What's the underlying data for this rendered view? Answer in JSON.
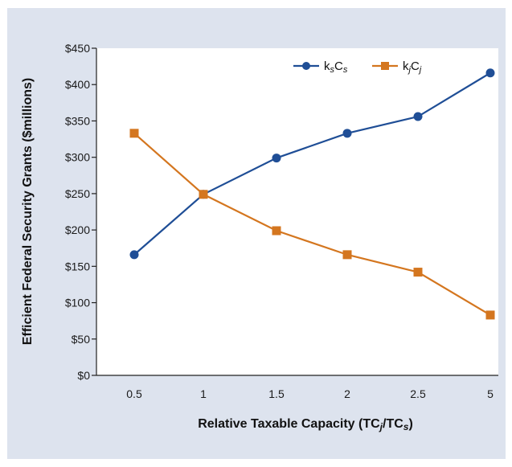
{
  "chart_data": {
    "type": "line",
    "categories": [
      "0.5",
      "1",
      "1.5",
      "2",
      "2.5",
      "5"
    ],
    "series": [
      {
        "name": "ksCs",
        "label_main": "k",
        "label_sub1": "s",
        "label_mid": "C",
        "label_sub2": "s",
        "sub_italic": true,
        "color": "#1f4e96",
        "marker": "circle",
        "values": [
          166,
          249,
          299,
          333,
          356,
          416
        ]
      },
      {
        "name": "kjCj",
        "label_main": "k",
        "label_sub1": "j",
        "label_mid": "C",
        "label_sub2": "j",
        "sub_italic": true,
        "color": "#d4761f",
        "marker": "square",
        "values": [
          333,
          249,
          199,
          166,
          142,
          83
        ]
      }
    ],
    "y_ticks": [
      "$0",
      "$50",
      "$100",
      "$150",
      "$200",
      "$250",
      "$300",
      "$350",
      "$400",
      "$450"
    ],
    "ylim": [
      0,
      450
    ],
    "ylabel": "Efficient Federal Security Grants ($millions)",
    "xlabel_parts": {
      "pre": "Relative Taxable Capacity (TC",
      "sub1": "j",
      "mid": "/TC",
      "sub2": "s",
      "post": ")"
    },
    "grid": false,
    "legend_position": "top-right"
  }
}
